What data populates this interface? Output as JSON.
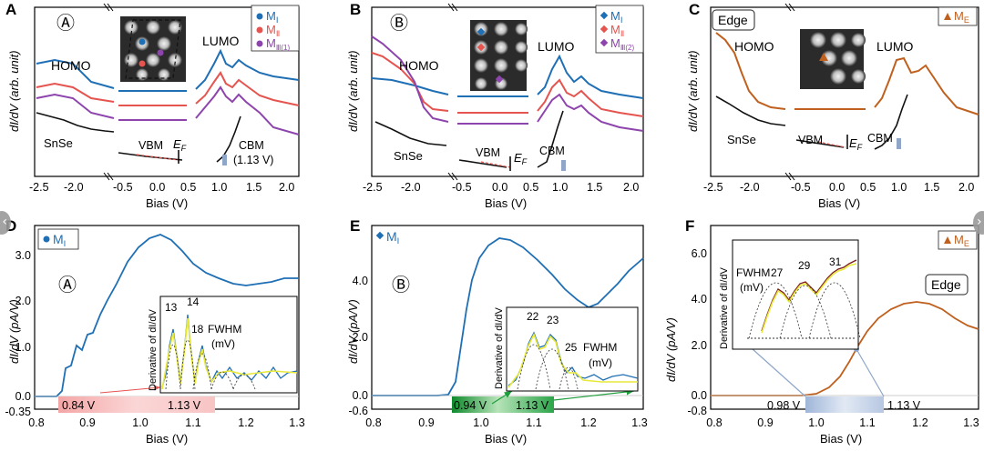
{
  "panels": {
    "A": {
      "letter": "A",
      "circle": "Ⓐ",
      "legend": [
        {
          "main": "M",
          "sub": "Ⅰ",
          "color": "#1f6fb5",
          "shape": "circle"
        },
        {
          "main": "M",
          "sub": "Ⅱ",
          "color": "#e5544f",
          "shape": "circle"
        },
        {
          "main": "M",
          "sub": "Ⅲ(1)",
          "color": "#8e44ad",
          "shape": "circle"
        }
      ],
      "homo": "HOMO",
      "lumo": "LUMO",
      "snse": "SnSe",
      "vbm": "VBM",
      "ef_main": "E",
      "ef_sub": "F",
      "cbm": "CBM",
      "cbm_value": "(1.13 V)",
      "ylabel": "dI/dV (arb. unit)",
      "xlabel": "Bias (V)",
      "xticks": [
        "-2.5",
        "-2.0",
        "-0.5",
        "0.0",
        "0.5",
        "1.0",
        "1.5",
        "2.0"
      ]
    },
    "B": {
      "letter": "B",
      "circle": "Ⓑ",
      "legend": [
        {
          "main": "M",
          "sub": "Ⅰ",
          "color": "#1f6fb5",
          "shape": "diamond"
        },
        {
          "main": "M",
          "sub": "Ⅱ",
          "color": "#e5544f",
          "shape": "diamond"
        },
        {
          "main": "M",
          "sub": "Ⅲ(2)",
          "color": "#8e44ad",
          "shape": "diamond"
        }
      ],
      "homo": "HOMO",
      "lumo": "LUMO",
      "snse": "SnSe",
      "vbm": "VBM",
      "ef_main": "E",
      "ef_sub": "F",
      "cbm": "CBM",
      "ylabel": "dI/dV (arb. unit)",
      "xlabel": "Bias (V)",
      "xticks": [
        "-2.5",
        "-2.0",
        "-0.5",
        "0.0",
        "0.5",
        "1.0",
        "1.5",
        "2.0"
      ]
    },
    "C": {
      "letter": "C",
      "tag": "Edge",
      "legend": [
        {
          "main": "M",
          "sub": "E",
          "color": "#c0601e",
          "shape": "triangle"
        }
      ],
      "homo": "HOMO",
      "lumo": "LUMO",
      "snse": "SnSe",
      "vbm": "VBM",
      "ef_main": "E",
      "ef_sub": "F",
      "cbm": "CBM",
      "ylabel": "dI/dV (arb. unit)",
      "xlabel": "Bias (V)",
      "xticks": [
        "-2.5",
        "-2.0",
        "-0.5",
        "0.0",
        "0.5",
        "1.0",
        "1.5",
        "2.0"
      ]
    },
    "D": {
      "letter": "D",
      "circle": "Ⓐ",
      "legend": {
        "main": "M",
        "sub": "Ⅰ",
        "color": "#1f6fb5"
      },
      "ylabel": "dI/dV (pA/V)",
      "xlabel": "Bias (V)",
      "yticks": [
        "3.0",
        "2.0",
        "1.0",
        "0.0",
        "-0.35"
      ],
      "xticks": [
        "0.8",
        "0.9",
        "1.0",
        "1.1",
        "1.2",
        "1.3"
      ],
      "bar_left": "0.84 V",
      "bar_right": "1.13 V",
      "inset_ylabel": "Derivative of dI/dV",
      "fwhm_values": [
        "13",
        "14",
        "18"
      ],
      "fwhm_label": "FWHM",
      "fwhm_unit": "(mV)"
    },
    "E": {
      "letter": "E",
      "circle": "Ⓑ",
      "legend": {
        "main": "M",
        "sub": "Ⅰ",
        "color": "#1f6fb5"
      },
      "ylabel": "dI/dV (pA/V)",
      "xlabel": "Bias (V)",
      "yticks": [
        "4.0",
        "2.0",
        "0.0",
        "-0.6"
      ],
      "xticks": [
        "0.8",
        "0.9",
        "1.0",
        "1.1",
        "1.2",
        "1.3"
      ],
      "bar_left": "0.94 V",
      "bar_right": "1.13 V",
      "inset_ylabel": "Derivative of dI/dV",
      "fwhm_values": [
        "22",
        "23",
        "25"
      ],
      "fwhm_label": "FWHM",
      "fwhm_unit": "(mV)"
    },
    "F": {
      "letter": "F",
      "tag": "Edge",
      "legend": {
        "main": "M",
        "sub": "E",
        "color": "#c0601e"
      },
      "ylabel": "dI/dV (pA/V)",
      "xlabel": "Bias (V)",
      "yticks": [
        "6.0",
        "4.0",
        "2.0",
        "0.0",
        "-0.8"
      ],
      "xticks": [
        "0.8",
        "0.9",
        "1.0",
        "1.1",
        "1.2",
        "1.3"
      ],
      "bar_left": "0.98 V",
      "bar_right": "1.13 V",
      "inset_ylabel": "Derivative of dI/dV",
      "fwhm_values": [
        "27",
        "29",
        "31"
      ],
      "fwhm_label": "FWHM",
      "fwhm_unit": "(mV)"
    }
  },
  "colors": {
    "blue": "#1f6fb5",
    "red": "#e5544f",
    "purple": "#8e44ad",
    "black": "#111111",
    "orange": "#c0601e",
    "yellow": "#e9e93a",
    "green": "#1e9e3a"
  },
  "chart_data": [
    {
      "type": "line",
      "panel": "A",
      "title": "",
      "xlabel": "Bias (V)",
      "ylabel": "dI/dV (arb. unit)",
      "xlim": [
        -2.6,
        2.0
      ],
      "series": [
        {
          "name": "M_I",
          "color": "#1f6fb5"
        },
        {
          "name": "M_II",
          "color": "#e5544f"
        },
        {
          "name": "M_III(1)",
          "color": "#8e44ad"
        },
        {
          "name": "SnSe",
          "color": "#111111"
        }
      ]
    },
    {
      "type": "line",
      "panel": "B",
      "title": "",
      "xlabel": "Bias (V)",
      "ylabel": "dI/dV (arb. unit)",
      "xlim": [
        -2.6,
        2.0
      ],
      "series": [
        {
          "name": "M_I",
          "color": "#1f6fb5"
        },
        {
          "name": "M_II",
          "color": "#e5544f"
        },
        {
          "name": "M_III(2)",
          "color": "#8e44ad"
        },
        {
          "name": "SnSe",
          "color": "#111111"
        }
      ]
    },
    {
      "type": "line",
      "panel": "C",
      "title": "",
      "xlabel": "Bias (V)",
      "ylabel": "dI/dV (arb. unit)",
      "xlim": [
        -2.6,
        2.0
      ],
      "series": [
        {
          "name": "M_E",
          "color": "#c0601e"
        },
        {
          "name": "SnSe",
          "color": "#111111"
        }
      ]
    },
    {
      "type": "line",
      "panel": "D",
      "xlabel": "Bias (V)",
      "ylabel": "dI/dV (pA/V)",
      "xlim": [
        0.75,
        1.3
      ],
      "ylim": [
        -0.35,
        3.5
      ],
      "series": [
        {
          "name": "M_I",
          "color": "#1f6fb5",
          "x": [
            0.75,
            0.8,
            0.84,
            0.86,
            0.88,
            0.9,
            0.93,
            0.96,
            1.0,
            1.03,
            1.05,
            1.08,
            1.12,
            1.16,
            1.2,
            1.25,
            1.3
          ],
          "y": [
            0,
            0,
            0.02,
            0.4,
            0.9,
            1.2,
            1.6,
            2.2,
            3.0,
            3.35,
            3.3,
            3.0,
            2.7,
            2.45,
            2.3,
            2.35,
            2.45
          ]
        }
      ],
      "markers": {
        "onset": 0.84,
        "cbm": 1.13
      }
    },
    {
      "type": "line",
      "panel": "E",
      "xlabel": "Bias (V)",
      "ylabel": "dI/dV (pA/V)",
      "xlim": [
        0.75,
        1.3
      ],
      "ylim": [
        -0.6,
        5.8
      ],
      "series": [
        {
          "name": "M_I",
          "color": "#1f6fb5",
          "x": [
            0.75,
            0.8,
            0.9,
            0.94,
            0.96,
            0.98,
            1.0,
            1.02,
            1.05,
            1.1,
            1.15,
            1.2,
            1.25,
            1.3
          ],
          "y": [
            0,
            0,
            0,
            0.05,
            1.5,
            3.2,
            4.2,
            5.0,
            5.45,
            4.8,
            3.8,
            3.0,
            3.8,
            4.8
          ]
        }
      ],
      "markers": {
        "onset": 0.94,
        "cbm": 1.13
      }
    },
    {
      "type": "line",
      "panel": "F",
      "xlabel": "Bias (V)",
      "ylabel": "dI/dV (pA/V)",
      "xlim": [
        0.75,
        1.3
      ],
      "ylim": [
        -0.8,
        6.8
      ],
      "series": [
        {
          "name": "M_E",
          "color": "#c0601e",
          "x": [
            0.75,
            0.8,
            0.9,
            0.98,
            1.0,
            1.03,
            1.06,
            1.09,
            1.12,
            1.15,
            1.18,
            1.22,
            1.26,
            1.3
          ],
          "y": [
            0,
            0,
            0,
            0.05,
            0.3,
            0.8,
            1.4,
            2.3,
            3.1,
            3.6,
            3.9,
            3.8,
            3.3,
            2.8
          ]
        }
      ],
      "markers": {
        "onset": 0.98,
        "cbm": 1.13
      }
    }
  ]
}
